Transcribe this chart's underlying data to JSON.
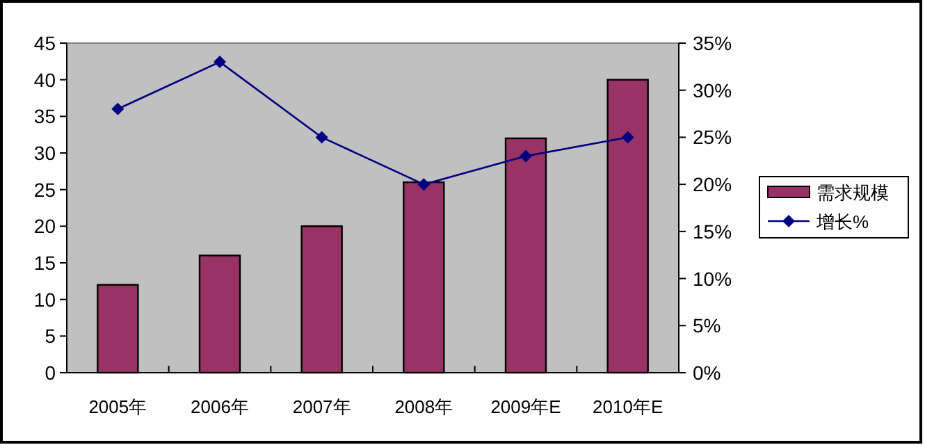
{
  "chart_data": {
    "type": "bar",
    "categories": [
      "2005年",
      "2006年",
      "2007年",
      "2008年",
      "2009年E",
      "2010年E"
    ],
    "series": [
      {
        "name": "需求规模",
        "color": "#993366",
        "values": [
          12,
          16,
          20,
          26,
          32,
          40
        ]
      },
      {
        "name": "增长%",
        "type": "line",
        "axis": "y2",
        "color": "#000080",
        "values": [
          28,
          33,
          25,
          20,
          23,
          25
        ]
      }
    ],
    "ylim": [
      0,
      45
    ],
    "yticks": [
      0,
      5,
      10,
      15,
      20,
      25,
      30,
      35,
      40,
      45
    ],
    "y2lim": [
      0,
      35
    ],
    "y2ticks": [
      {
        "value": 0,
        "label": "0%"
      },
      {
        "value": 5,
        "label": "5%"
      },
      {
        "value": 10,
        "label": "10%"
      },
      {
        "value": 15,
        "label": "15%"
      },
      {
        "value": 20,
        "label": "20%"
      },
      {
        "value": 25,
        "label": "25%"
      },
      {
        "value": 30,
        "label": "30%"
      },
      {
        "value": 35,
        "label": "35%"
      }
    ],
    "legend": "right",
    "marker": "diamond"
  }
}
